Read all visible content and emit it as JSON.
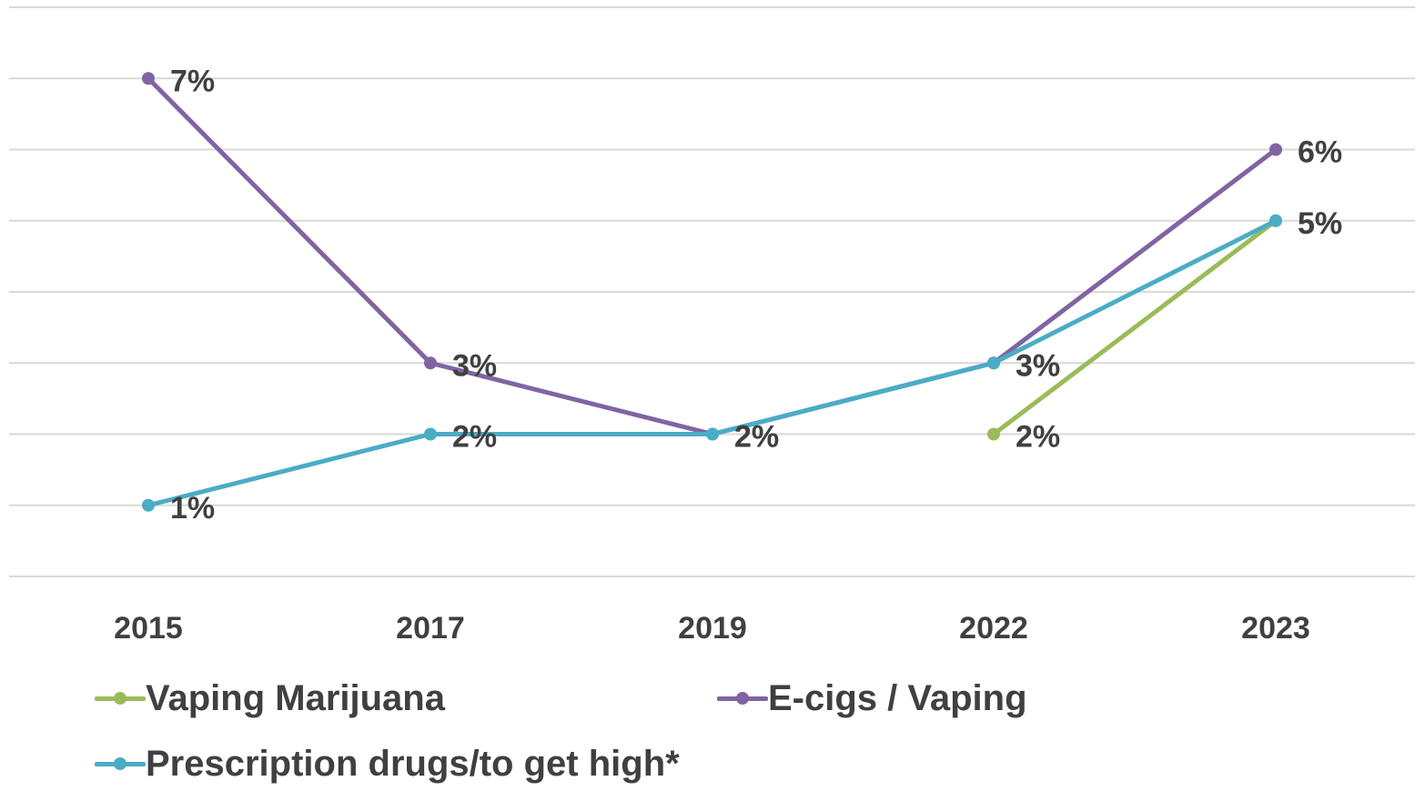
{
  "chart_data": {
    "type": "line",
    "categories": [
      "2015",
      "2017",
      "2019",
      "2022",
      "2023"
    ],
    "ylim": [
      0,
      8
    ],
    "grid": true,
    "legend_position": "bottom",
    "series": [
      {
        "name": "Vaping Marijuana",
        "color": "#9bbb59",
        "values": [
          null,
          null,
          null,
          2,
          5
        ],
        "labels": [
          null,
          null,
          null,
          "2%",
          "5%"
        ]
      },
      {
        "name": "E-cigs / Vaping",
        "color": "#8064a2",
        "values": [
          7,
          3,
          2,
          3,
          6
        ],
        "labels": [
          "7%",
          "3%",
          "2%",
          "3%",
          "6%"
        ]
      },
      {
        "name": "Prescription drugs/to get high*",
        "color": "#4bacc6",
        "values": [
          1,
          2,
          2,
          3,
          5
        ],
        "labels": [
          "1%",
          "2%",
          "2%",
          "3%",
          "5%"
        ]
      }
    ]
  }
}
